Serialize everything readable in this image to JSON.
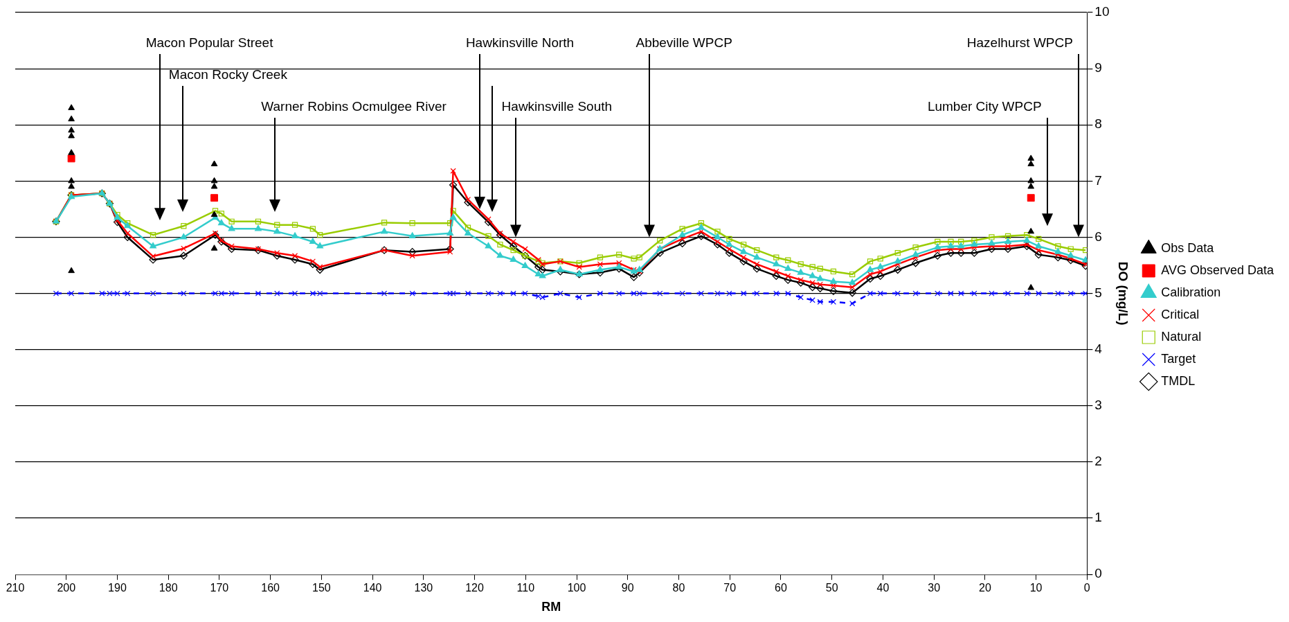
{
  "chart_data": {
    "type": "line",
    "xlabel": "RM",
    "ylabel": "DO (mg/L)",
    "x": [
      202,
      199,
      193,
      191.5,
      190,
      188,
      183,
      177,
      170.8,
      169.6,
      167.6,
      162.4,
      158.7,
      155.2,
      151.7,
      150.3,
      137.7,
      132.2,
      124.8,
      124.2,
      121.3,
      117.3,
      115,
      112.4,
      110.1,
      107.5,
      106.7,
      103.2,
      99.5,
      95.4,
      91.7,
      88.8,
      87.7,
      83.7,
      79.3,
      75.6,
      72.4,
      70.1,
      67.3,
      64.7,
      60.9,
      58.6,
      56.1,
      53.8,
      52.3,
      49.7,
      46,
      42.5,
      40.5,
      37.1,
      33.6,
      29.3,
      26.7,
      24.7,
      22.1,
      18.7,
      15.5,
      11.8,
      9.5,
      5.7,
      3.2,
      0.3
    ],
    "xlim": [
      210,
      0
    ],
    "xticks": [
      210,
      200,
      190,
      180,
      170,
      160,
      150,
      140,
      130,
      120,
      110,
      100,
      90,
      80,
      70,
      60,
      50,
      40,
      30,
      20,
      10,
      0
    ],
    "ylim": [
      0,
      10
    ],
    "yticks": [
      0,
      1,
      2,
      3,
      4,
      5,
      6,
      7,
      8,
      9,
      10
    ],
    "grid": "y",
    "legend": "right",
    "series": [
      {
        "name": "Calibration",
        "color": "#33cccc",
        "marker": "triangle",
        "line_style": "solid",
        "values": [
          6.28,
          6.72,
          6.78,
          6.6,
          6.35,
          6.2,
          5.84,
          6.0,
          6.35,
          6.25,
          6.15,
          6.15,
          6.1,
          6.02,
          5.92,
          5.84,
          6.1,
          6.02,
          6.07,
          6.35,
          6.07,
          5.84,
          5.67,
          5.6,
          5.49,
          5.34,
          5.31,
          5.42,
          5.34,
          5.42,
          5.47,
          5.39,
          5.42,
          5.79,
          6.04,
          6.17,
          6.0,
          5.87,
          5.74,
          5.64,
          5.52,
          5.44,
          5.37,
          5.31,
          5.26,
          5.21,
          5.19,
          5.42,
          5.47,
          5.57,
          5.69,
          5.82,
          5.84,
          5.84,
          5.87,
          5.89,
          5.92,
          5.94,
          5.84,
          5.74,
          5.67,
          5.59
        ]
      },
      {
        "name": "Critical",
        "color": "#ff0000",
        "marker": "cross",
        "line_style": "solid",
        "values": [
          6.28,
          6.75,
          6.78,
          6.6,
          6.3,
          6.07,
          5.66,
          5.8,
          6.07,
          5.94,
          5.84,
          5.79,
          5.72,
          5.67,
          5.57,
          5.47,
          5.77,
          5.67,
          5.74,
          7.18,
          6.67,
          6.32,
          6.07,
          5.92,
          5.79,
          5.6,
          5.52,
          5.57,
          5.47,
          5.52,
          5.54,
          5.42,
          5.39,
          5.79,
          5.97,
          6.1,
          5.92,
          5.79,
          5.64,
          5.52,
          5.39,
          5.31,
          5.24,
          5.19,
          5.16,
          5.14,
          5.11,
          5.34,
          5.39,
          5.52,
          5.64,
          5.77,
          5.79,
          5.79,
          5.82,
          5.84,
          5.84,
          5.87,
          5.77,
          5.69,
          5.62,
          5.52
        ]
      },
      {
        "name": "Natural",
        "color": "#99cc00",
        "marker": "square",
        "line_style": "solid",
        "values": [
          6.28,
          6.75,
          6.78,
          6.6,
          6.4,
          6.25,
          6.04,
          6.2,
          6.47,
          6.42,
          6.28,
          6.28,
          6.22,
          6.22,
          6.15,
          6.04,
          6.26,
          6.25,
          6.25,
          6.47,
          6.17,
          6.02,
          5.87,
          5.77,
          5.67,
          5.57,
          5.54,
          5.57,
          5.54,
          5.64,
          5.69,
          5.62,
          5.64,
          5.94,
          6.15,
          6.25,
          6.1,
          5.97,
          5.87,
          5.77,
          5.64,
          5.59,
          5.52,
          5.47,
          5.44,
          5.39,
          5.34,
          5.57,
          5.62,
          5.72,
          5.82,
          5.92,
          5.92,
          5.92,
          5.94,
          6.0,
          6.02,
          6.04,
          5.97,
          5.84,
          5.79,
          5.77
        ]
      },
      {
        "name": "Target",
        "color": "#0000ff",
        "marker": "cross",
        "line_style": "dashed",
        "values": [
          5,
          5,
          5,
          5,
          5,
          5,
          5,
          5,
          5,
          5,
          5,
          5,
          5,
          5,
          5,
          5,
          5,
          5,
          5,
          5,
          5,
          5,
          5,
          5,
          5,
          4.95,
          4.93,
          5,
          4.93,
          5,
          5,
          5,
          5,
          5,
          5,
          5,
          5,
          5,
          5,
          5,
          5,
          5,
          4.93,
          4.88,
          4.85,
          4.85,
          4.82,
          5,
          5,
          5,
          5,
          5,
          5,
          5,
          5,
          5,
          5,
          5,
          5,
          5,
          5,
          5
        ]
      },
      {
        "name": "TMDL",
        "color": "#000000",
        "marker": "diamond",
        "line_style": "solid",
        "values": [
          6.28,
          6.75,
          6.78,
          6.6,
          6.27,
          6.0,
          5.6,
          5.67,
          6.04,
          5.92,
          5.79,
          5.77,
          5.67,
          5.6,
          5.52,
          5.42,
          5.77,
          5.74,
          5.79,
          6.93,
          6.62,
          6.27,
          6.04,
          5.84,
          5.67,
          5.47,
          5.42,
          5.39,
          5.34,
          5.37,
          5.44,
          5.29,
          5.37,
          5.72,
          5.89,
          6.02,
          5.87,
          5.72,
          5.57,
          5.44,
          5.31,
          5.24,
          5.19,
          5.11,
          5.09,
          5.04,
          5.01,
          5.26,
          5.31,
          5.42,
          5.54,
          5.67,
          5.72,
          5.72,
          5.72,
          5.79,
          5.79,
          5.84,
          5.69,
          5.64,
          5.59,
          5.49
        ]
      },
      {
        "name": "Obs Data",
        "type": "scatter",
        "color": "#000000",
        "marker": "triangle",
        "x": [
          199,
          199,
          199,
          199,
          199,
          199,
          199,
          199,
          171,
          171,
          171,
          171,
          171,
          11,
          11,
          11,
          11,
          11,
          11
        ],
        "values": [
          8.3,
          8.1,
          7.9,
          7.8,
          7.5,
          7.0,
          6.9,
          5.4,
          7.3,
          7.0,
          6.9,
          6.4,
          5.8,
          7.4,
          7.3,
          7.0,
          6.9,
          6.1,
          5.1
        ]
      },
      {
        "name": "AVG Observed Data",
        "type": "scatter",
        "color": "#ff0000",
        "marker": "square",
        "x": [
          199,
          171,
          11
        ],
        "values": [
          7.4,
          6.7,
          6.7
        ]
      }
    ],
    "annotations": [
      "Macon Popular Street",
      "Macon Rocky Creek",
      "Warner Robins Ocmulgee River",
      "Hawkinsville North",
      "Hawkinsville South",
      "Abbeville WPCP",
      "Hazelhurst WPCP",
      "Lumber City WPCP"
    ]
  }
}
